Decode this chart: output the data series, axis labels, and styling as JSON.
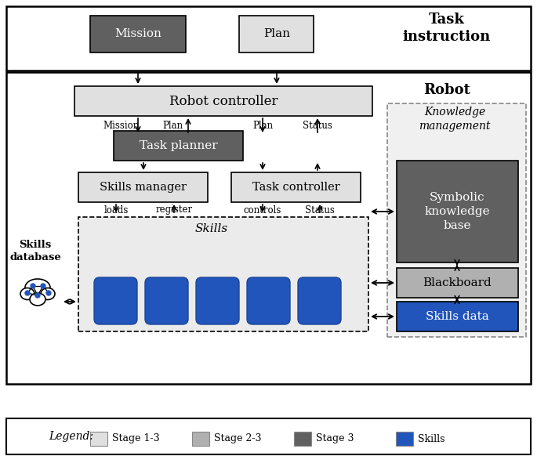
{
  "colors": {
    "stage1_3": "#e0e0e0",
    "stage2_3": "#b0b0b0",
    "stage3": "#606060",
    "skills_blue": "#2255bb",
    "white": "#ffffff",
    "black": "#000000",
    "skills_bg": "#e8e8e8"
  },
  "legend_items": [
    {
      "label": "Stage 1-3",
      "color": "#e0e0e0"
    },
    {
      "label": "Stage 2-3",
      "color": "#b0b0b0"
    },
    {
      "label": "Stage 3",
      "color": "#606060"
    },
    {
      "label": "Skills",
      "color": "#2255bb"
    }
  ]
}
